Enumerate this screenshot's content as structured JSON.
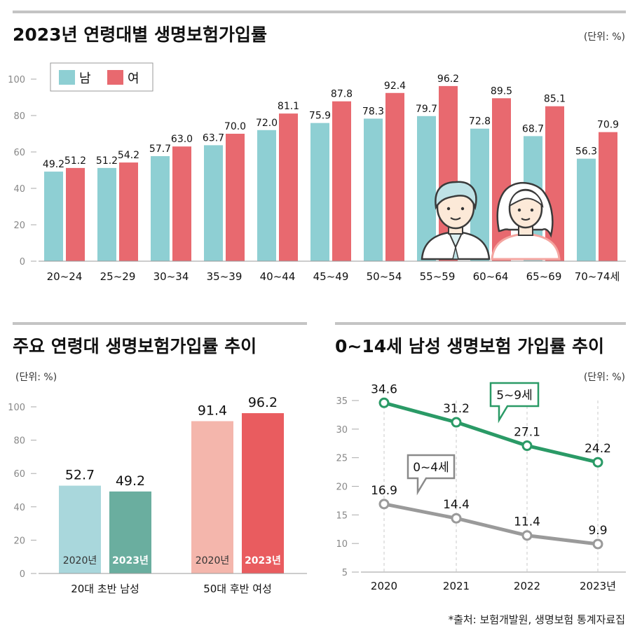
{
  "colors": {
    "male": "#8ecfd3",
    "female": "#e8696f",
    "male_2020": "#a9d7dc",
    "male_2023": "#6aae9f",
    "female_2020": "#f4b6ac",
    "female_2023": "#e95c5f",
    "line_5_9": "#2a9a66",
    "line_0_4": "#9a9a9a",
    "rule": "#bdbdbd"
  },
  "source": "*출처: 보험개발원, 생명보험 통계자료집",
  "chart_data": [
    {
      "type": "bar",
      "title": "2023년 연령대별 생명보험가입률",
      "unit": "(단위: %)",
      "categories": [
        "20~24",
        "25~29",
        "30~34",
        "35~39",
        "40~44",
        "45~49",
        "50~54",
        "55~59",
        "60~64",
        "65~69",
        "70~74세"
      ],
      "series": [
        {
          "name": "남",
          "values": [
            49.2,
            51.2,
            57.7,
            63.7,
            72.0,
            75.9,
            78.3,
            79.7,
            72.8,
            68.7,
            56.3
          ]
        },
        {
          "name": "여",
          "values": [
            51.2,
            54.2,
            63.0,
            70.0,
            81.1,
            87.8,
            92.4,
            96.2,
            89.5,
            85.1,
            70.9
          ]
        }
      ],
      "value_labels": {
        "남": [
          "49.2",
          "51.2",
          "57.7",
          "63.7",
          "72.0",
          "75.9",
          "78.3",
          "79.7",
          "72.8",
          "68.7",
          "56.3"
        ],
        "여": [
          "51.2",
          "54.2",
          "63.0",
          "70.0",
          "81.1",
          "87.8",
          "92.4",
          "96.2",
          "89.5",
          "85.1",
          "70.9"
        ]
      },
      "yticks": [
        "0",
        "20",
        "40",
        "60",
        "80",
        "100"
      ],
      "ylim": [
        0,
        100
      ],
      "legend": "top-left",
      "grid": false
    },
    {
      "type": "bar",
      "title": "주요 연령대 생명보험가입률 추이",
      "unit": "(단위: %)",
      "groups": [
        {
          "label": "20대 초반 남성",
          "bars": [
            {
              "year": "2020년",
              "value": 52.7,
              "label": "52.7"
            },
            {
              "year": "2023년",
              "value": 49.2,
              "label": "49.2"
            }
          ]
        },
        {
          "label": "50대 후반 여성",
          "bars": [
            {
              "year": "2020년",
              "value": 91.4,
              "label": "91.4"
            },
            {
              "year": "2023년",
              "value": 96.2,
              "label": "96.2"
            }
          ]
        }
      ],
      "yticks": [
        "0",
        "20",
        "40",
        "60",
        "80",
        "100"
      ],
      "ylim": [
        0,
        100
      ],
      "grid": false
    },
    {
      "type": "line",
      "title": "0~14세 남성 생명보험 가입률 추이",
      "unit": "(단위: %)",
      "x": [
        "2020",
        "2021",
        "2022",
        "2023년"
      ],
      "series": [
        {
          "name": "5~9세",
          "values": [
            34.6,
            31.2,
            27.1,
            24.2
          ],
          "labels": [
            "34.6",
            "31.2",
            "27.1",
            "24.2"
          ]
        },
        {
          "name": "0~4세",
          "values": [
            16.9,
            14.4,
            11.4,
            9.9
          ],
          "labels": [
            "16.9",
            "14.4",
            "11.4",
            "9.9"
          ]
        }
      ],
      "yticks": [
        "5",
        "10",
        "15",
        "20",
        "25",
        "30",
        "35"
      ],
      "ylim": [
        5,
        37
      ],
      "grid": "vertical dashed"
    }
  ]
}
